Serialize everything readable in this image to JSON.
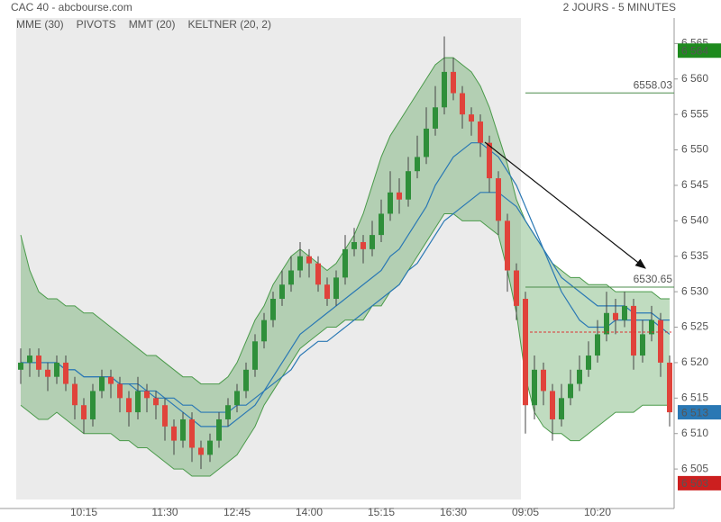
{
  "chart_data": {
    "type": "candlestick",
    "title": "CAC 40 - abcbourse.com",
    "subtitle": "2 JOURS - 5 MINUTES",
    "up_color": "#2f8f3a",
    "down_color": "#e0433b",
    "categories": [
      null,
      null,
      null,
      null,
      null,
      null,
      null,
      "10:15",
      null,
      null,
      null,
      null,
      null,
      null,
      null,
      null,
      "11:30",
      null,
      null,
      null,
      null,
      null,
      null,
      null,
      "12:45",
      null,
      null,
      null,
      null,
      null,
      null,
      null,
      "14:00",
      null,
      null,
      null,
      null,
      null,
      null,
      null,
      "15:15",
      null,
      null,
      null,
      null,
      null,
      null,
      null,
      "16:30",
      null,
      null,
      null,
      null,
      null,
      null,
      null,
      "09:05",
      null,
      null,
      null,
      null,
      null,
      null,
      null,
      "10:20",
      null,
      null,
      null,
      null,
      null,
      null,
      null,
      null
    ],
    "candles": [
      [
        6519,
        6522,
        6517,
        6520
      ],
      [
        6520,
        6522,
        6518,
        6521
      ],
      [
        6521,
        6522,
        6518,
        6519
      ],
      [
        6519,
        6520,
        6516,
        6518
      ],
      [
        6518,
        6521,
        6517,
        6520
      ],
      [
        6520,
        6521,
        6516,
        6517
      ],
      [
        6517,
        6518,
        6512,
        6514
      ],
      [
        6514,
        6515,
        6510,
        6512
      ],
      [
        6512,
        6517,
        6511,
        6516
      ],
      [
        6516,
        6519,
        6515,
        6518
      ],
      [
        6518,
        6519,
        6515,
        6517
      ],
      [
        6517,
        6518,
        6513,
        6515
      ],
      [
        6515,
        6516,
        6511,
        6513
      ],
      [
        6513,
        6518,
        6512,
        6516
      ],
      [
        6516,
        6517,
        6513,
        6515
      ],
      [
        6515,
        6516,
        6512,
        6514
      ],
      [
        6514,
        6515,
        6509,
        6511
      ],
      [
        6511,
        6512,
        6507,
        6509
      ],
      [
        6509,
        6513,
        6508,
        6512
      ],
      [
        6512,
        6513,
        6506,
        6508
      ],
      [
        6508,
        6509,
        6505,
        6507
      ],
      [
        6507,
        6510,
        6506,
        6509
      ],
      [
        6509,
        6513,
        6508,
        6512
      ],
      [
        6512,
        6515,
        6511,
        6514
      ],
      [
        6514,
        6517,
        6513,
        6516
      ],
      [
        6516,
        6520,
        6515,
        6519
      ],
      [
        6519,
        6524,
        6518,
        6523
      ],
      [
        6523,
        6527,
        6522,
        6526
      ],
      [
        6526,
        6530,
        6525,
        6529
      ],
      [
        6529,
        6533,
        6528,
        6531
      ],
      [
        6531,
        6535,
        6530,
        6533
      ],
      [
        6533,
        6537,
        6532,
        6535
      ],
      [
        6535,
        6536,
        6532,
        6534
      ],
      [
        6534,
        6535,
        6530,
        6531
      ],
      [
        6531,
        6532,
        6528,
        6529
      ],
      [
        6529,
        6533,
        6528,
        6532
      ],
      [
        6532,
        6538,
        6531,
        6536
      ],
      [
        6536,
        6539,
        6535,
        6537
      ],
      [
        6537,
        6538,
        6534,
        6536
      ],
      [
        6536,
        6540,
        6535,
        6538
      ],
      [
        6538,
        6543,
        6537,
        6541
      ],
      [
        6541,
        6547,
        6540,
        6544
      ],
      [
        6544,
        6546,
        6541,
        6543
      ],
      [
        6543,
        6549,
        6542,
        6547
      ],
      [
        6547,
        6552,
        6546,
        6549
      ],
      [
        6549,
        6556,
        6548,
        6553
      ],
      [
        6553,
        6559,
        6552,
        6556
      ],
      [
        6556,
        6566,
        6555,
        6561
      ],
      [
        6561,
        6563,
        6557,
        6558
      ],
      [
        6558,
        6559,
        6553,
        6555
      ],
      [
        6555,
        6556,
        6552,
        6554
      ],
      [
        6554,
        6555,
        6549,
        6551
      ],
      [
        6551,
        6552,
        6544,
        6546
      ],
      [
        6546,
        6547,
        6538,
        6540
      ],
      [
        6540,
        6541,
        6530,
        6533
      ],
      [
        6533,
        6534,
        6526,
        6528
      ],
      [
        6529,
        6530,
        6510,
        6514
      ],
      [
        6514,
        6521,
        6512,
        6519
      ],
      [
        6519,
        6520,
        6514,
        6516
      ],
      [
        6516,
        6517,
        6509,
        6512
      ],
      [
        6512,
        6517,
        6511,
        6515
      ],
      [
        6515,
        6519,
        6514,
        6517
      ],
      [
        6517,
        6521,
        6516,
        6519
      ],
      [
        6519,
        6523,
        6518,
        6521
      ],
      [
        6521,
        6526,
        6520,
        6524
      ],
      [
        6524,
        6530,
        6523,
        6527
      ],
      [
        6527,
        6529,
        6524,
        6526
      ],
      [
        6526,
        6530,
        6525,
        6528
      ],
      [
        6528,
        6529,
        6519,
        6521
      ],
      [
        6521,
        6526,
        6520,
        6524
      ],
      [
        6524,
        6528,
        6523,
        6526
      ],
      [
        6526,
        6527,
        6518,
        6520
      ],
      [
        6520,
        6521,
        6511,
        6513
      ]
    ],
    "series": [
      {
        "name": "MME (30)",
        "color": "#2a78b4",
        "values": [
          6520,
          6520,
          6520,
          6520,
          6520,
          6519,
          6519,
          6518,
          6518,
          6518,
          6518,
          6517,
          6517,
          6517,
          6516,
          6516,
          6515,
          6515,
          6514,
          6514,
          6513,
          6513,
          6513,
          6513,
          6514,
          6514,
          6515,
          6516,
          6517,
          6518,
          6519,
          6521,
          6522,
          6523,
          6523,
          6524,
          6525,
          6526,
          6527,
          6528,
          6529,
          6530,
          6531,
          6533,
          6534,
          6536,
          6538,
          6540,
          6541,
          6542,
          6543,
          6544,
          6544,
          6544,
          6543,
          6542,
          6540,
          6538,
          6536,
          6534,
          6532,
          6531,
          6530,
          6529,
          6528,
          6528,
          6528,
          6528,
          6527,
          6527,
          6527,
          6526,
          6526
        ]
      },
      {
        "name": "PIVOTS",
        "color": "#555555",
        "line_color": "#4c8c4c",
        "levels": [
          6558.03,
          6530.65
        ]
      },
      {
        "name": "MMT (20)",
        "color": "#2a78b4",
        "values": [
          6520,
          6520,
          6520,
          6520,
          6520,
          6519,
          6519,
          6518,
          6518,
          6518,
          6518,
          6517,
          6517,
          6516,
          6516,
          6515,
          6515,
          6514,
          6513,
          6512,
          6511,
          6511,
          6511,
          6511,
          6512,
          6513,
          6514,
          6516,
          6518,
          6520,
          6522,
          6524,
          6525,
          6526,
          6527,
          6528,
          6529,
          6530,
          6531,
          6532,
          6533,
          6535,
          6536,
          6538,
          6540,
          6542,
          6545,
          6547,
          6549,
          6550,
          6551,
          6551,
          6550,
          6549,
          6547,
          6545,
          6542,
          6539,
          6536,
          6533,
          6530,
          6528,
          6526,
          6525,
          6525,
          6525,
          6526,
          6526,
          6526,
          6526,
          6526,
          6525,
          6524
        ]
      },
      {
        "name": "KELTNER (20, 2)",
        "color": "#4a9a4a",
        "upper": [
          6538,
          6533,
          6530,
          6529,
          6529,
          6528,
          6528,
          6527,
          6527,
          6526,
          6525,
          6524,
          6523,
          6522,
          6521,
          6521,
          6520,
          6519,
          6518,
          6518,
          6517,
          6517,
          6517,
          6518,
          6520,
          6523,
          6526,
          6528,
          6531,
          6533,
          6535,
          6536,
          6535,
          6534,
          6533,
          6534,
          6536,
          6538,
          6541,
          6545,
          6549,
          6552,
          6554,
          6556,
          6558,
          6560,
          6562,
          6563,
          6563,
          6562,
          6561,
          6559,
          6556,
          6552,
          6548,
          6543,
          6540,
          6538,
          6536,
          6534,
          6533,
          6532,
          6532,
          6531,
          6531,
          6531,
          6530,
          6530,
          6530,
          6530,
          6530,
          6529,
          6529
        ],
        "lower": [
          6514,
          6513,
          6512,
          6512,
          6513,
          6512,
          6511,
          6510,
          6510,
          6510,
          6510,
          6509,
          6509,
          6508,
          6508,
          6507,
          6506,
          6505,
          6505,
          6504,
          6504,
          6504,
          6505,
          6506,
          6507,
          6509,
          6511,
          6514,
          6516,
          6518,
          6520,
          6522,
          6523,
          6524,
          6525,
          6525,
          6526,
          6526,
          6526,
          6528,
          6528,
          6530,
          6531,
          6533,
          6535,
          6537,
          6539,
          6541,
          6541,
          6540,
          6540,
          6540,
          6539,
          6538,
          6533,
          6527,
          6518,
          6513,
          6511,
          6510,
          6510,
          6509,
          6509,
          6510,
          6511,
          6512,
          6513,
          6513,
          6513,
          6514,
          6514,
          6514,
          6514
        ]
      }
    ],
    "dashed_level": 6524.3,
    "price_tags": [
      {
        "value": 6564,
        "label": "6 564",
        "color": "#1e8a1e"
      },
      {
        "value": 6513,
        "label": "6 513",
        "color": "#2a78b4"
      },
      {
        "value": 6503,
        "label": "6 503",
        "color": "#cc1f1f"
      }
    ],
    "ylim": [
      6500.7,
      6568.6
    ],
    "yticks": [
      {
        "value": 6505,
        "label": "6 505"
      },
      {
        "value": 6510,
        "label": "6 510"
      },
      {
        "value": 6515,
        "label": "6 515"
      },
      {
        "value": 6520,
        "label": "6 520"
      },
      {
        "value": 6525,
        "label": "6 525"
      },
      {
        "value": 6530,
        "label": "6 530"
      },
      {
        "value": 6535,
        "label": "6 535"
      },
      {
        "value": 6540,
        "label": "6 540"
      },
      {
        "value": 6545,
        "label": "6 545"
      },
      {
        "value": 6550,
        "label": "6 550"
      },
      {
        "value": 6555,
        "label": "6 555"
      },
      {
        "value": 6560,
        "label": "6 560"
      },
      {
        "value": 6565,
        "label": "6 565"
      }
    ]
  }
}
